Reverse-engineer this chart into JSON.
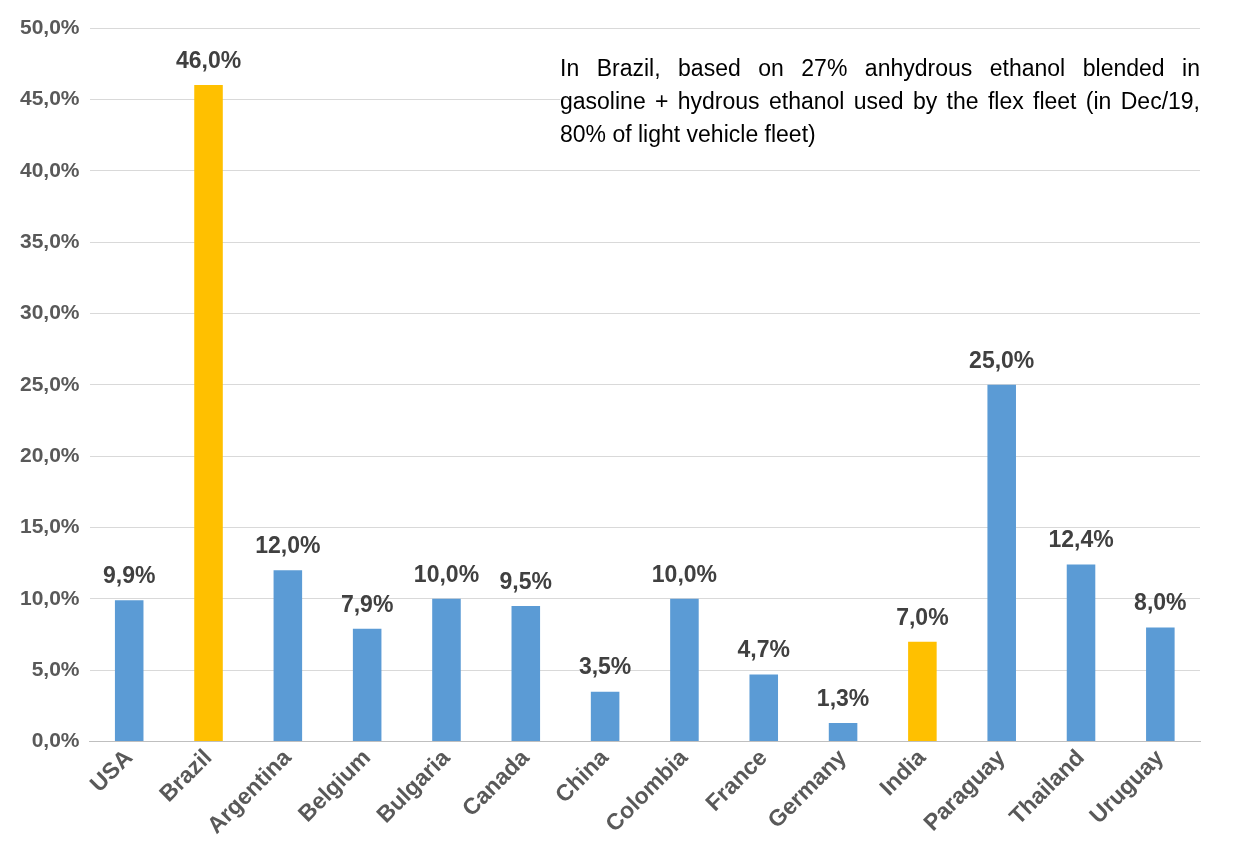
{
  "chart_data": {
    "type": "bar",
    "categories": [
      "USA",
      "Brazil",
      "Argentina",
      "Belgium",
      "Bulgaria",
      "Canada",
      "China",
      "Colombia",
      "France",
      "Germany",
      "India",
      "Paraguay",
      "Thailand",
      "Uruguay"
    ],
    "values": [
      9.9,
      46.0,
      12.0,
      7.9,
      10.0,
      9.5,
      3.5,
      10.0,
      4.7,
      1.3,
      7.0,
      25.0,
      12.4,
      8.0
    ],
    "colors": [
      "#5b9bd5",
      "#ffc000",
      "#5b9bd5",
      "#5b9bd5",
      "#5b9bd5",
      "#5b9bd5",
      "#5b9bd5",
      "#5b9bd5",
      "#5b9bd5",
      "#5b9bd5",
      "#ffc000",
      "#5b9bd5",
      "#5b9bd5",
      "#5b9bd5"
    ],
    "value_labels": [
      "9,9%",
      "46,0%",
      "12,0%",
      "7,9%",
      "10,0%",
      "9,5%",
      "3,5%",
      "10,0%",
      "4,7%",
      "1,3%",
      "7,0%",
      "25,0%",
      "12,4%",
      "8,0%"
    ],
    "ylim": [
      0,
      50
    ],
    "yticks": [
      {
        "value": 0,
        "label": "0,0%"
      },
      {
        "value": 5,
        "label": "5,0%"
      },
      {
        "value": 10,
        "label": "10,0%"
      },
      {
        "value": 15,
        "label": "15,0%"
      },
      {
        "value": 20,
        "label": "20,0%"
      },
      {
        "value": 25,
        "label": "25,0%"
      },
      {
        "value": 30,
        "label": "30,0%"
      },
      {
        "value": 35,
        "label": "35,0%"
      },
      {
        "value": 40,
        "label": "40,0%"
      },
      {
        "value": 45,
        "label": "45,0%"
      },
      {
        "value": 50,
        "label": "50,0%"
      }
    ],
    "grid": "y",
    "annotations": [
      "In Brazil, based on 27% anhydrous ethanol blended in gasoline + hydrous ethanol used by the flex fleet (in Dec/19, 80% of light vehicle fleet)"
    ]
  }
}
